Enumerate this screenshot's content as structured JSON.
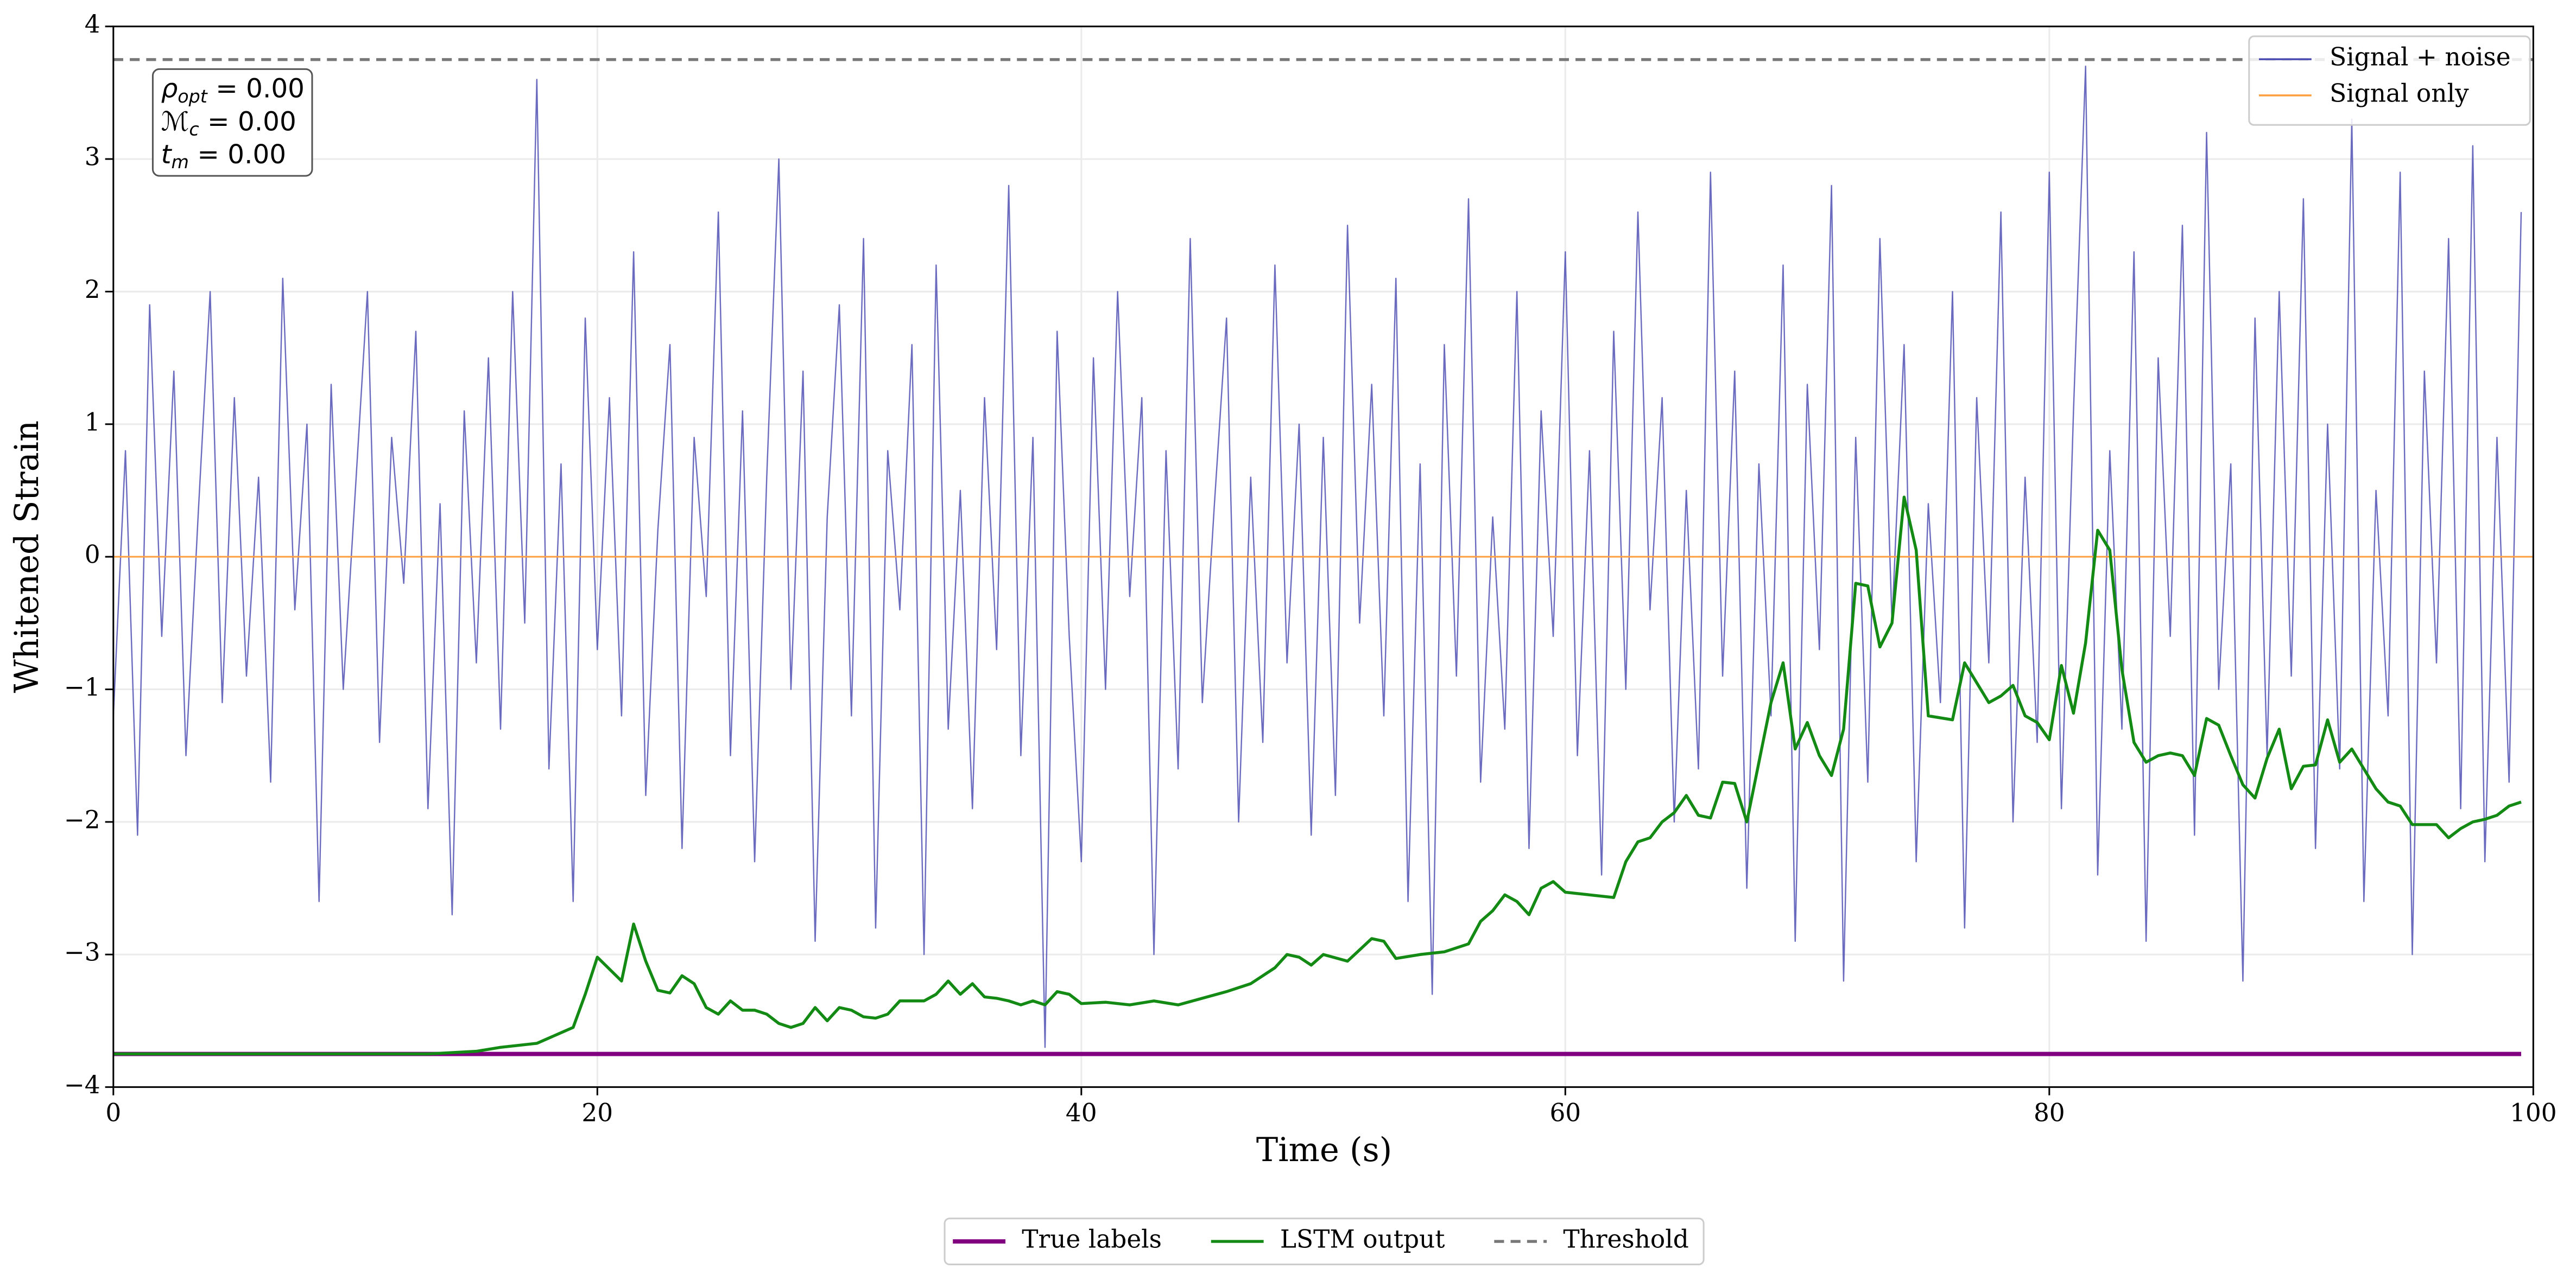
{
  "chart_data": {
    "type": "line",
    "x_label": "Time (s)",
    "y_label": "Whitened Strain",
    "xlim": [
      0,
      100
    ],
    "xticks": [
      0,
      20,
      40,
      60,
      80,
      100
    ],
    "ylim": [
      -4,
      4
    ],
    "yticks": [
      {
        "value": -4,
        "label": "−4"
      },
      {
        "value": -3,
        "label": "−3"
      },
      {
        "value": -2,
        "label": "−2"
      },
      {
        "value": -1,
        "label": "−1"
      },
      0,
      1,
      2,
      3,
      4
    ],
    "grid": true,
    "annotations": [
      {
        "symbol": "ρ",
        "subscript": "opt",
        "text": " = 0.00"
      },
      {
        "symbol": "ℳ",
        "subscript": "c",
        "text": " = 0.00"
      },
      {
        "symbol": "t",
        "subscript": "m",
        "text": " = 0.00"
      }
    ],
    "series": [
      {
        "name": "Signal + noise",
        "color": "#5050b4",
        "style": "solid",
        "legend": "upper right",
        "x": [
          0,
          0.5,
          1,
          1.5,
          2,
          2.5,
          3,
          3.5,
          4,
          4.5,
          5,
          5.5,
          6,
          6.5,
          7,
          7.5,
          8,
          8.5,
          9,
          9.5,
          10,
          10.5,
          11,
          11.5,
          12,
          12.5,
          13,
          13.5,
          14,
          14.5,
          15,
          15.5,
          16,
          16.5,
          17,
          17.5,
          18,
          18.5,
          19,
          19.5,
          20,
          20.5,
          21,
          21.5,
          22,
          22.5,
          23,
          23.5,
          24,
          24.5,
          25,
          25.5,
          26,
          26.5,
          27,
          27.5,
          28,
          28.5,
          29,
          29.5,
          30,
          30.5,
          31,
          31.5,
          32,
          32.5,
          33,
          33.5,
          34,
          34.5,
          35,
          35.5,
          36,
          36.5,
          37,
          37.5,
          38,
          38.5,
          39,
          39.5,
          40,
          40.5,
          41,
          41.5,
          42,
          42.5,
          43,
          43.5,
          44,
          44.5,
          45,
          45.5,
          46,
          46.5,
          47,
          47.5,
          48,
          48.5,
          49,
          49.5,
          50,
          50.5,
          51,
          51.5,
          52,
          52.5,
          53,
          53.5,
          54,
          54.5,
          55,
          55.5,
          56,
          56.5,
          57,
          57.5,
          58,
          58.5,
          59,
          59.5,
          60,
          60.5,
          61,
          61.5,
          62,
          62.5,
          63,
          63.5,
          64,
          64.5,
          65,
          65.5,
          66,
          66.5,
          67,
          67.5,
          68,
          68.5,
          69,
          69.5,
          70,
          70.5,
          71,
          71.5,
          72,
          72.5,
          73,
          73.5,
          74,
          74.5,
          75,
          75.5,
          76,
          76.5,
          77,
          77.5,
          78,
          78.5,
          79,
          79.5,
          80,
          80.5,
          81,
          81.5,
          82,
          82.5,
          83,
          83.5,
          84,
          84.5,
          85,
          85.5,
          86,
          86.5,
          87,
          87.5,
          88,
          88.5,
          89,
          89.5,
          90,
          90.5,
          91,
          91.5,
          92,
          92.5,
          93,
          93.5,
          94,
          94.5,
          95,
          95.5,
          96,
          96.5,
          97,
          97.5,
          98,
          98.5,
          99,
          99.5
        ],
        "values": [
          -1.2,
          0.8,
          -2.1,
          1.9,
          -0.6,
          1.4,
          -1.5,
          0.3,
          2.0,
          -1.1,
          1.2,
          -0.9,
          0.6,
          -1.7,
          2.1,
          -0.4,
          1.0,
          -2.6,
          1.3,
          -1.0,
          0.5,
          2.0,
          -1.4,
          0.9,
          -0.2,
          1.7,
          -1.9,
          0.4,
          -2.7,
          1.1,
          -0.8,
          1.5,
          -1.3,
          2.0,
          -0.5,
          3.6,
          -1.6,
          0.7,
          -2.6,
          1.8,
          -0.7,
          1.2,
          -1.2,
          2.3,
          -1.8,
          0.2,
          1.6,
          -2.2,
          0.9,
          -0.3,
          2.6,
          -1.5,
          1.1,
          -2.3,
          0.6,
          3.0,
          -1.0,
          1.4,
          -2.9,
          0.3,
          1.9,
          -1.2,
          2.4,
          -2.8,
          0.8,
          -0.4,
          1.6,
          -3.0,
          2.2,
          -1.3,
          0.5,
          -1.9,
          1.2,
          -0.7,
          2.8,
          -1.5,
          0.9,
          -3.7,
          1.7,
          -0.6,
          -2.3,
          1.5,
          -1.0,
          2.0,
          -0.3,
          1.2,
          -3.0,
          0.8,
          -1.6,
          2.4,
          -1.1,
          0.4,
          1.8,
          -2.0,
          0.6,
          -1.4,
          2.2,
          -0.8,
          1.0,
          -2.1,
          0.9,
          -1.8,
          2.5,
          -0.5,
          1.3,
          -1.2,
          2.1,
          -2.6,
          0.7,
          -3.3,
          1.6,
          -0.9,
          2.7,
          -1.7,
          0.3,
          -1.3,
          2.0,
          -2.2,
          1.1,
          -0.6,
          2.3,
          -1.5,
          0.8,
          -2.4,
          1.7,
          -1.0,
          2.6,
          -0.4,
          1.2,
          -2.0,
          0.5,
          -1.6,
          2.9,
          -0.9,
          1.4,
          -2.5,
          0.7,
          -1.2,
          2.2,
          -2.9,
          1.3,
          -0.7,
          2.8,
          -3.2,
          0.9,
          -1.7,
          2.4,
          -0.5,
          1.6,
          -2.3,
          0.4,
          -1.1,
          2.0,
          -2.8,
          1.2,
          -0.8,
          2.6,
          -2.0,
          0.6,
          -1.4,
          2.9,
          -1.9,
          1.1,
          3.7,
          -2.4,
          0.8,
          -1.3,
          2.3,
          -2.9,
          1.5,
          -0.6,
          2.5,
          -2.1,
          3.2,
          -1.0,
          0.7,
          -3.2,
          1.8,
          -1.5,
          2.0,
          -0.9,
          2.7,
          -2.2,
          1.0,
          -1.6,
          3.3,
          -2.6,
          0.5,
          -1.2,
          2.9,
          -3.0,
          1.4,
          -0.8,
          2.4,
          -1.9,
          3.1,
          -2.3,
          0.9,
          -1.7,
          2.6
        ]
      },
      {
        "name": "Signal only",
        "color": "#ffa040",
        "style": "solid",
        "legend": "upper right",
        "x": [
          0,
          100
        ],
        "values": [
          0,
          0
        ]
      },
      {
        "name": "True labels",
        "color": "#800080",
        "style": "thick",
        "legend": "lower center",
        "x": [
          0,
          99.5
        ],
        "values": [
          -3.75,
          -3.75
        ]
      },
      {
        "name": "LSTM output",
        "color": "#138a13",
        "style": "solid",
        "legend": "lower center",
        "x": [
          0,
          10,
          13,
          15,
          16,
          17.5,
          19,
          19.5,
          20,
          21,
          21.5,
          22,
          22.5,
          23,
          23.5,
          24,
          24.5,
          25,
          25.5,
          26,
          26.5,
          27,
          27.5,
          28,
          28.5,
          29,
          29.5,
          30,
          30.5,
          31,
          31.5,
          32,
          32.5,
          33,
          33.5,
          34,
          34.5,
          35,
          35.5,
          36,
          36.5,
          37,
          37.5,
          38,
          38.5,
          39,
          39.5,
          40,
          41,
          42,
          43,
          44,
          45,
          46,
          47,
          48,
          48.5,
          49,
          49.5,
          50,
          51,
          52,
          52.5,
          53,
          54,
          55,
          56,
          56.5,
          57,
          57.5,
          58,
          58.5,
          59,
          59.5,
          60,
          61,
          62,
          62.5,
          63,
          63.5,
          64,
          64.5,
          65,
          65.5,
          66,
          66.5,
          67,
          67.5,
          68,
          68.5,
          69,
          69.5,
          70,
          70.5,
          71,
          71.5,
          72,
          72.5,
          73,
          73.5,
          74,
          74.5,
          75,
          76,
          76.5,
          77,
          77.5,
          78,
          78.5,
          79,
          79.5,
          80,
          80.5,
          81,
          81.5,
          82,
          82.5,
          83,
          83.5,
          84,
          84.5,
          85,
          85.5,
          86,
          86.5,
          87,
          87.5,
          88,
          88.5,
          89,
          89.5,
          90,
          90.5,
          91,
          91.5,
          92,
          92.5,
          93,
          93.5,
          94,
          94.5,
          95,
          96,
          96.5,
          97,
          97.5,
          98,
          98.5,
          99,
          99.5
        ],
        "values": [
          -3.75,
          -3.75,
          -3.75,
          -3.73,
          -3.7,
          -3.67,
          -3.55,
          -3.3,
          -3.02,
          -3.2,
          -2.77,
          -3.05,
          -3.27,
          -3.29,
          -3.16,
          -3.22,
          -3.4,
          -3.45,
          -3.35,
          -3.42,
          -3.42,
          -3.45,
          -3.52,
          -3.55,
          -3.52,
          -3.4,
          -3.5,
          -3.4,
          -3.42,
          -3.47,
          -3.48,
          -3.45,
          -3.35,
          -3.35,
          -3.35,
          -3.3,
          -3.2,
          -3.3,
          -3.22,
          -3.32,
          -3.33,
          -3.35,
          -3.38,
          -3.35,
          -3.38,
          -3.28,
          -3.3,
          -3.37,
          -3.36,
          -3.38,
          -3.35,
          -3.38,
          -3.33,
          -3.28,
          -3.22,
          -3.1,
          -3.0,
          -3.02,
          -3.08,
          -3.0,
          -3.05,
          -2.88,
          -2.9,
          -3.03,
          -3.0,
          -2.98,
          -2.92,
          -2.75,
          -2.67,
          -2.55,
          -2.6,
          -2.7,
          -2.5,
          -2.45,
          -2.53,
          -2.55,
          -2.57,
          -2.3,
          -2.15,
          -2.12,
          -2.0,
          -1.93,
          -1.8,
          -1.95,
          -1.97,
          -1.7,
          -1.71,
          -2.0,
          -1.55,
          -1.1,
          -0.8,
          -1.45,
          -1.25,
          -1.5,
          -1.65,
          -1.3,
          -0.2,
          -0.22,
          -0.68,
          -0.5,
          0.45,
          0.05,
          -1.2,
          -1.23,
          -0.8,
          -0.95,
          -1.1,
          -1.05,
          -0.97,
          -1.2,
          -1.25,
          -1.38,
          -0.82,
          -1.18,
          -0.65,
          0.2,
          0.05,
          -0.85,
          -1.4,
          -1.55,
          -1.5,
          -1.48,
          -1.5,
          -1.65,
          -1.22,
          -1.27,
          -1.5,
          -1.72,
          -1.82,
          -1.52,
          -1.3,
          -1.75,
          -1.58,
          -1.57,
          -1.23,
          -1.55,
          -1.45,
          -1.6,
          -1.75,
          -1.85,
          -1.88,
          -2.02,
          -2.02,
          -2.12,
          -2.05,
          -2.0,
          -1.98,
          -1.95,
          -1.88,
          -1.85
        ]
      },
      {
        "name": "Threshold",
        "color": "#777777",
        "style": "dashed",
        "legend": "lower center",
        "x": [
          0,
          100
        ],
        "values": [
          3.75,
          3.75
        ]
      }
    ]
  }
}
